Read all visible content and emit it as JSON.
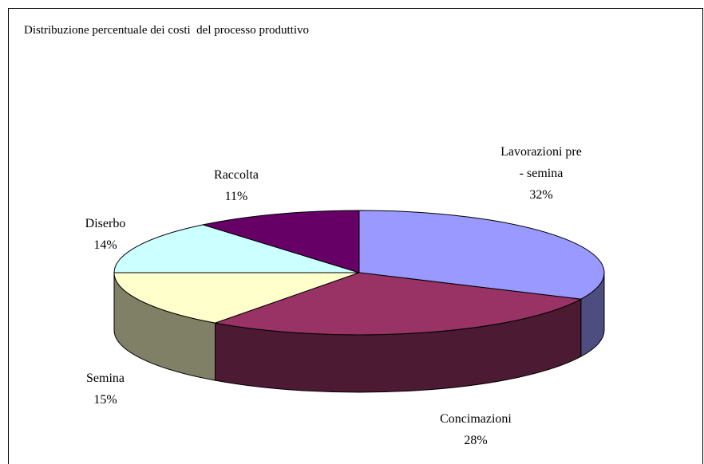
{
  "chart_data": {
    "type": "pie",
    "title": "Distribuzione percentuale dei costi  del processo produttivo",
    "categories": [
      "Lavorazioni pre - semina",
      "Concimazioni",
      "Semina",
      "Diserbo",
      "Raccolta"
    ],
    "values": [
      32,
      28,
      15,
      14,
      11
    ],
    "value_labels": [
      "32%",
      "28%",
      "15%",
      "14%",
      "11%"
    ],
    "colors": [
      "#9999ff",
      "#993366",
      "#ffffcc",
      "#ccffff",
      "#660066"
    ],
    "side_colors": [
      "#4d4d80",
      "#4d1a33",
      "#808066",
      "#668080",
      "#330033"
    ]
  }
}
